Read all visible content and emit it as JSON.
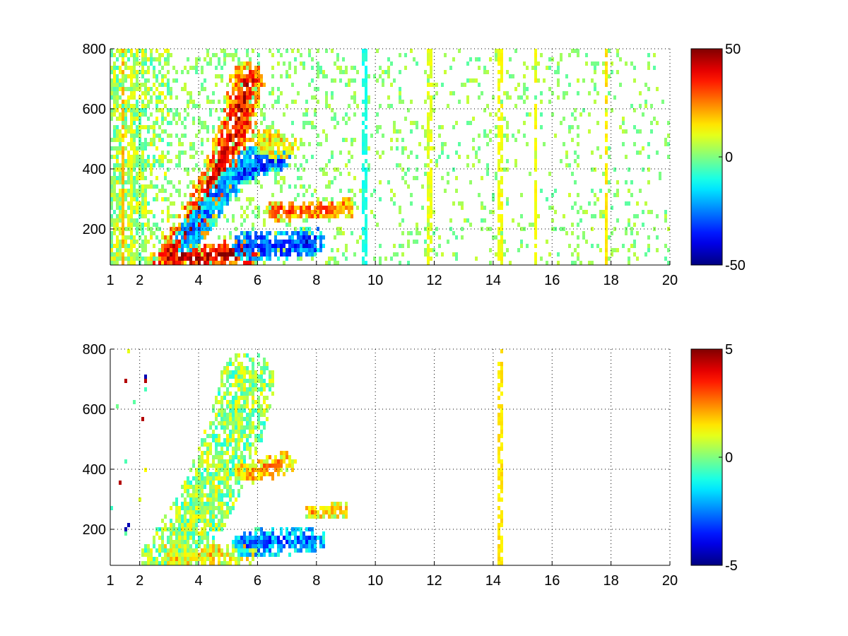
{
  "chart_data": [
    {
      "type": "heatmap",
      "title": "",
      "xlabel": "",
      "ylabel": "",
      "xlim": [
        1,
        20
      ],
      "ylim": [
        80,
        800
      ],
      "x_ticks": [
        1,
        2,
        4,
        6,
        8,
        10,
        12,
        14,
        16,
        18,
        20
      ],
      "y_ticks": [
        200,
        400,
        600,
        800
      ],
      "grid": true,
      "colorbar": {
        "range": [
          -50,
          50
        ],
        "ticks": [
          -50,
          0,
          50
        ],
        "colormap": "jet"
      },
      "features": [
        {
          "shape": "band",
          "points": [
            [
              2.9,
              95
            ],
            [
              3.3,
              150
            ],
            [
              3.8,
              230
            ],
            [
              4.3,
              320
            ],
            [
              4.8,
              430
            ],
            [
              5.3,
              560
            ],
            [
              5.6,
              700
            ]
          ],
          "value": 40,
          "width": 25
        },
        {
          "shape": "band",
          "points": [
            [
              3.0,
              120
            ],
            [
              3.6,
              110
            ],
            [
              4.2,
              115
            ],
            [
              5.0,
              125
            ],
            [
              5.6,
              130
            ]
          ],
          "value": 45,
          "width": 18
        },
        {
          "shape": "band",
          "points": [
            [
              3.5,
              170
            ],
            [
              4.0,
              230
            ],
            [
              4.5,
              300
            ],
            [
              5.0,
              360
            ],
            [
              5.5,
              410
            ],
            [
              5.8,
              440
            ]
          ],
          "value": -25,
          "width": 18
        },
        {
          "shape": "band",
          "points": [
            [
              5.4,
              390
            ],
            [
              6.0,
              415
            ],
            [
              6.8,
              440
            ]
          ],
          "value": -35,
          "width": 14
        },
        {
          "shape": "band",
          "points": [
            [
              5.5,
              150
            ],
            [
              6.2,
              150
            ],
            [
              7.0,
              155
            ],
            [
              7.8,
              165
            ]
          ],
          "value": -35,
          "width": 20
        },
        {
          "shape": "band",
          "points": [
            [
              6.5,
              265
            ],
            [
              7.5,
              270
            ],
            [
              8.5,
              270
            ],
            [
              9.0,
              275
            ]
          ],
          "value": 30,
          "width": 14
        },
        {
          "shape": "band",
          "points": [
            [
              6.2,
              500
            ],
            [
              6.9,
              480
            ]
          ],
          "value": 15,
          "width": 20
        }
      ],
      "streaks": [
        {
          "x": 1.4,
          "value": 20
        },
        {
          "x": 1.7,
          "value": 10
        },
        {
          "x": 9.6,
          "value": -10
        },
        {
          "x": 11.8,
          "value": 10
        },
        {
          "x": 14.2,
          "value": 12
        },
        {
          "x": 15.4,
          "value": 12
        },
        {
          "x": 17.8,
          "value": 15
        }
      ]
    },
    {
      "type": "heatmap",
      "title": "",
      "xlabel": "",
      "ylabel": "",
      "xlim": [
        1,
        20
      ],
      "ylim": [
        80,
        800
      ],
      "x_ticks": [
        1,
        2,
        4,
        6,
        8,
        10,
        12,
        14,
        16,
        18,
        20
      ],
      "y_ticks": [
        200,
        400,
        600,
        800
      ],
      "grid": true,
      "colorbar": {
        "range": [
          -5,
          5
        ],
        "ticks": [
          -5,
          0,
          5
        ],
        "colormap": "jet"
      },
      "features": [
        {
          "shape": "band",
          "points": [
            [
              2.9,
              95
            ],
            [
              3.3,
              150
            ],
            [
              3.8,
              230
            ],
            [
              4.3,
              320
            ],
            [
              4.8,
              430
            ],
            [
              5.3,
              560
            ],
            [
              5.6,
              700
            ]
          ],
          "value": 0.3,
          "width": 40
        },
        {
          "shape": "band",
          "points": [
            [
              3.0,
              120
            ],
            [
              3.6,
              110
            ],
            [
              4.2,
              115
            ],
            [
              5.0,
              125
            ],
            [
              5.6,
              130
            ]
          ],
          "value": 1.5,
          "width": 16
        },
        {
          "shape": "band",
          "points": [
            [
              5.6,
              390
            ],
            [
              6.3,
              410
            ],
            [
              6.9,
              430
            ]
          ],
          "value": 2.2,
          "width": 16
        },
        {
          "shape": "band",
          "points": [
            [
              5.6,
              160
            ],
            [
              6.4,
              165
            ],
            [
              7.2,
              170
            ],
            [
              7.8,
              170
            ]
          ],
          "value": -2.8,
          "width": 20
        },
        {
          "shape": "band",
          "points": [
            [
              7.8,
              265
            ],
            [
              8.4,
              268
            ],
            [
              8.9,
              270
            ]
          ],
          "value": 1.8,
          "width": 10
        }
      ],
      "streaks": [
        {
          "x": 14.2,
          "value": 1.5
        }
      ]
    }
  ]
}
